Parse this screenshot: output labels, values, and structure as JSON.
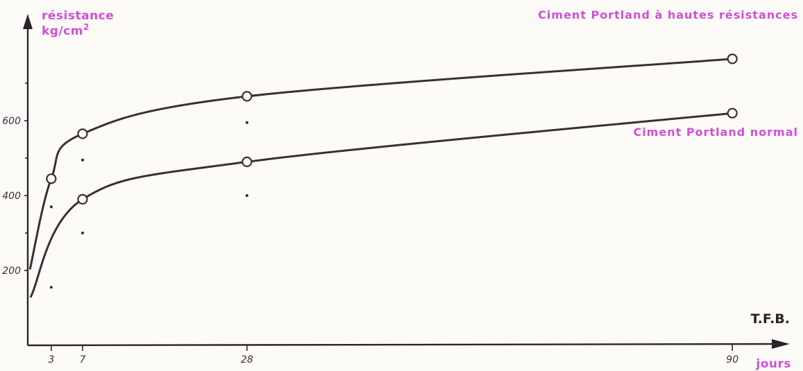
{
  "chart_data": {
    "type": "line",
    "y_title_line1": "résistance",
    "y_title_line2": "kg/cm",
    "y_title_sup": "2",
    "xlabel": "jours",
    "x_ticks": [
      3,
      7,
      28,
      90
    ],
    "y_ticks": [
      200,
      400,
      600
    ],
    "xlim": [
      0,
      95
    ],
    "ylim": [
      0,
      840
    ],
    "source_note": "T.F.B.",
    "series": [
      {
        "name": "Ciment Portland à hautes résistances",
        "color": "#3a2f35",
        "x": [
          3,
          7,
          28,
          90
        ],
        "y": [
          445,
          565,
          665,
          765
        ],
        "start": [
          0.3,
          205
        ]
      },
      {
        "name": "Ciment Portland normal",
        "color": "#3a2f35",
        "x": [
          3,
          7,
          28,
          90
        ],
        "y": [
          null,
          390,
          490,
          620
        ],
        "start": [
          0.4,
          130
        ]
      }
    ],
    "minor_dots": [
      {
        "x": 3,
        "y": 370
      },
      {
        "x": 7,
        "y": 495
      },
      {
        "x": 7,
        "y": 300
      },
      {
        "x": 28,
        "y": 595
      },
      {
        "x": 28,
        "y": 400
      },
      {
        "x": 3,
        "y": 155
      }
    ],
    "label_color": "#d04fd6"
  }
}
